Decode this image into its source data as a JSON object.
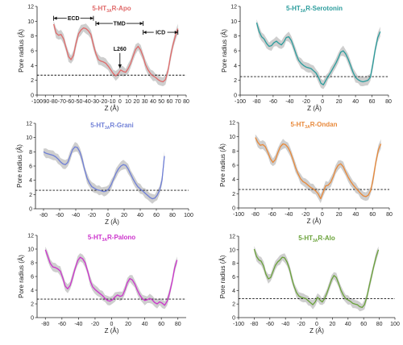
{
  "chart_data": [
    {
      "type": "line",
      "title": "5-HT3AR-Apo",
      "title_main": "5-HT",
      "title_sub": "3A",
      "title_rest": "R-Apo",
      "color": "#e06a6a",
      "xlabel": "Z (Å)",
      "ylabel": "Pore radius (Å)",
      "xlim": [
        -100,
        80
      ],
      "ylim": [
        0,
        12
      ],
      "x_ticks": [
        -100,
        -90,
        -80,
        -70,
        -60,
        -50,
        -40,
        -30,
        -20,
        -10,
        0,
        10,
        20,
        30,
        40,
        50,
        60,
        70,
        80
      ],
      "y_ticks": [
        0,
        2,
        4,
        6,
        8,
        10,
        12
      ],
      "threshold": 2.7,
      "x": [
        -80,
        -77,
        -74,
        -71,
        -68,
        -65,
        -62,
        -59,
        -56,
        -53,
        -50,
        -47,
        -44,
        -41,
        -38,
        -35,
        -32,
        -29,
        -26,
        -23,
        -20,
        -17,
        -14,
        -11,
        -8,
        -5,
        -2,
        1,
        4,
        7,
        10,
        13,
        16,
        19,
        22,
        25,
        28,
        31,
        34,
        37,
        40,
        43,
        46,
        49,
        52,
        55,
        58,
        61,
        64,
        67,
        70
      ],
      "y": [
        9.6,
        8.4,
        8.1,
        8.2,
        7.6,
        6.4,
        5.2,
        4.8,
        5.4,
        7.0,
        8.3,
        8.8,
        9.1,
        9.0,
        8.7,
        8.2,
        6.8,
        5.6,
        4.8,
        4.6,
        4.5,
        4.3,
        3.9,
        3.4,
        2.9,
        2.6,
        2.9,
        3.4,
        3.2,
        3.1,
        3.6,
        4.3,
        5.3,
        6.2,
        6.6,
        6.1,
        5.2,
        4.1,
        3.4,
        2.9,
        2.6,
        2.4,
        2.1,
        1.9,
        1.8,
        2.1,
        3.3,
        5.2,
        6.8,
        8.0,
        9.0
      ],
      "annotations": [
        {
          "text": "ECD",
          "x1": -80,
          "x2": -32,
          "y": 10.4
        },
        {
          "text": "TMD",
          "x1": -29,
          "x2": 28,
          "y": 9.7
        },
        {
          "text": "ICD",
          "x1": 28,
          "x2": 70,
          "y": 8.5
        }
      ],
      "arrow_label": {
        "text": "L260",
        "x": 0,
        "y": 3.4
      }
    },
    {
      "type": "line",
      "title": "5-HT3AR-Serotonin",
      "title_main": "5-HT",
      "title_sub": "3A",
      "title_rest": "R-Serotonin",
      "color": "#2a9c9c",
      "xlabel": "Z (Å)",
      "ylabel": "Pore radius (Å)",
      "xlim": [
        -100,
        80
      ],
      "ylim": [
        0,
        12
      ],
      "x_ticks": [
        -100,
        -80,
        -60,
        -40,
        -20,
        0,
        20,
        40,
        60,
        80
      ],
      "y_ticks": [
        0,
        2,
        4,
        6,
        8,
        10,
        12
      ],
      "threshold": 2.5,
      "x": [
        -80,
        -77,
        -74,
        -71,
        -68,
        -65,
        -62,
        -59,
        -56,
        -53,
        -50,
        -47,
        -44,
        -41,
        -38,
        -35,
        -32,
        -29,
        -26,
        -23,
        -20,
        -17,
        -14,
        -11,
        -8,
        -5,
        -2,
        1,
        4,
        7,
        10,
        13,
        16,
        19,
        22,
        25,
        28,
        31,
        34,
        37,
        40,
        43,
        46,
        49,
        52,
        55,
        58,
        61,
        64,
        67,
        70
      ],
      "y": [
        9.8,
        8.6,
        7.9,
        7.6,
        7.0,
        6.6,
        6.7,
        7.1,
        7.3,
        7.0,
        6.8,
        7.2,
        7.8,
        7.9,
        7.4,
        6.5,
        5.5,
        4.7,
        4.3,
        4.0,
        3.8,
        3.7,
        3.6,
        3.3,
        3.0,
        2.4,
        1.6,
        1.4,
        2.0,
        2.6,
        3.1,
        3.7,
        4.3,
        5.0,
        5.8,
        6.0,
        5.6,
        4.9,
        4.0,
        3.1,
        2.4,
        2.1,
        1.9,
        1.8,
        1.9,
        2.0,
        2.4,
        4.2,
        6.2,
        7.8,
        8.6
      ]
    },
    {
      "type": "line",
      "title": "5-HT3AR-Grani",
      "title_main": "5-HT",
      "title_sub": "3A",
      "title_rest": "R-Grani",
      "color": "#6f7fd6",
      "xlabel": "Z (Å)",
      "ylabel": "Pore radius (Å)",
      "xlim": [
        -90,
        100
      ],
      "ylim": [
        0,
        12
      ],
      "x_ticks": [
        -80,
        -60,
        -40,
        -20,
        0,
        20,
        40,
        60,
        80,
        100
      ],
      "y_ticks": [
        0,
        2,
        4,
        6,
        8,
        10,
        12
      ],
      "threshold": 2.6,
      "x": [
        -80,
        -77,
        -74,
        -71,
        -68,
        -65,
        -62,
        -59,
        -56,
        -53,
        -50,
        -47,
        -44,
        -41,
        -38,
        -35,
        -32,
        -29,
        -26,
        -23,
        -20,
        -17,
        -14,
        -11,
        -8,
        -5,
        -2,
        1,
        4,
        7,
        10,
        13,
        16,
        19,
        22,
        25,
        28,
        31,
        34,
        37,
        40,
        43,
        46,
        49,
        52,
        55,
        58,
        61,
        64,
        67,
        70
      ],
      "y": [
        8.0,
        7.8,
        7.7,
        7.6,
        7.5,
        7.3,
        7.0,
        6.6,
        6.3,
        6.2,
        6.5,
        7.4,
        8.3,
        8.7,
        8.6,
        8.0,
        6.9,
        5.5,
        4.3,
        3.6,
        3.1,
        2.9,
        2.7,
        2.6,
        2.5,
        2.4,
        2.5,
        2.8,
        3.4,
        4.2,
        5.0,
        5.6,
        6.0,
        6.2,
        6.1,
        5.6,
        4.9,
        4.2,
        3.6,
        3.1,
        2.8,
        2.5,
        2.2,
        1.9,
        1.6,
        1.4,
        1.5,
        1.9,
        2.6,
        4.0,
        7.4
      ]
    },
    {
      "type": "line",
      "title": "5-HT3AR-Ondan",
      "title_main": "5-HT",
      "title_sub": "3A",
      "title_rest": "R-Ondan",
      "color": "#e8893a",
      "xlabel": "Z (Å)",
      "ylabel": "Pore radius (Å)",
      "xlim": [
        -100,
        80
      ],
      "ylim": [
        0,
        12
      ],
      "x_ticks": [
        -100,
        -80,
        -60,
        -40,
        -20,
        0,
        20,
        40,
        60,
        80
      ],
      "y_ticks": [
        0,
        2,
        4,
        6,
        8,
        10,
        12
      ],
      "threshold": 2.6,
      "x": [
        -80,
        -77,
        -74,
        -71,
        -68,
        -65,
        -62,
        -59,
        -56,
        -53,
        -50,
        -47,
        -44,
        -41,
        -38,
        -35,
        -32,
        -29,
        -26,
        -23,
        -20,
        -17,
        -14,
        -11,
        -8,
        -5,
        -2,
        1,
        4,
        7,
        10,
        13,
        16,
        19,
        22,
        25,
        28,
        31,
        34,
        37,
        40,
        43,
        46,
        49,
        52,
        55,
        58,
        61,
        64,
        67,
        70
      ],
      "y": [
        9.9,
        9.2,
        8.8,
        8.9,
        8.6,
        7.8,
        6.9,
        6.4,
        6.8,
        7.8,
        8.6,
        9.0,
        8.9,
        8.5,
        7.8,
        6.8,
        5.7,
        4.8,
        4.1,
        3.7,
        3.5,
        3.2,
        2.9,
        2.7,
        2.4,
        2.0,
        1.3,
        2.2,
        3.1,
        3.2,
        3.6,
        4.4,
        5.4,
        6.0,
        6.2,
        5.8,
        5.0,
        4.3,
        3.7,
        3.2,
        2.8,
        2.4,
        2.0,
        1.7,
        1.6,
        1.8,
        2.5,
        4.3,
        6.5,
        8.2,
        9.0
      ]
    },
    {
      "type": "line",
      "title": "5-HT3AR-Palono",
      "title_main": "5-HT",
      "title_sub": "3A",
      "title_rest": "R-Palono",
      "color": "#cc33cc",
      "xlabel": "Z (Å)",
      "ylabel": "Pore radius (Å)",
      "xlim": [
        -90,
        90
      ],
      "ylim": [
        0,
        12
      ],
      "x_ticks": [
        -80,
        -60,
        -40,
        -20,
        0,
        20,
        40,
        60,
        80
      ],
      "y_ticks": [
        0,
        2,
        4,
        6,
        8,
        10,
        12
      ],
      "threshold": 2.7,
      "x": [
        -80,
        -77,
        -74,
        -71,
        -68,
        -65,
        -62,
        -59,
        -56,
        -53,
        -50,
        -47,
        -44,
        -41,
        -38,
        -35,
        -32,
        -29,
        -26,
        -23,
        -20,
        -17,
        -14,
        -11,
        -8,
        -5,
        -2,
        1,
        4,
        7,
        10,
        13,
        16,
        19,
        22,
        25,
        28,
        31,
        34,
        37,
        40,
        43,
        46,
        49,
        52,
        55,
        58,
        61,
        64,
        67,
        70,
        73,
        76,
        79
      ],
      "y": [
        9.9,
        8.9,
        7.9,
        7.4,
        7.3,
        7.1,
        6.8,
        5.8,
        4.6,
        4.2,
        4.7,
        5.9,
        7.2,
        8.3,
        8.8,
        8.6,
        8.0,
        6.8,
        5.4,
        4.5,
        4.1,
        3.8,
        3.5,
        3.2,
        2.8,
        2.5,
        2.4,
        2.6,
        3.0,
        3.3,
        3.1,
        3.2,
        4.0,
        5.1,
        5.7,
        5.5,
        4.9,
        4.0,
        3.3,
        2.8,
        2.5,
        2.6,
        2.8,
        2.6,
        2.2,
        2.0,
        2.3,
        2.1,
        1.8,
        2.4,
        3.6,
        5.2,
        7.2,
        8.4
      ]
    },
    {
      "type": "line",
      "title": "5-HT3AR-Alo",
      "title_main": "5-HT",
      "title_sub": "3A",
      "title_rest": "R-Alo",
      "color": "#6aa23a",
      "xlabel": "Z (Å)",
      "ylabel": "Pore radius (Å)",
      "xlim": [
        -100,
        100
      ],
      "ylim": [
        0,
        12
      ],
      "x_ticks": [
        -100,
        -80,
        -60,
        -40,
        -20,
        0,
        20,
        40,
        60,
        80,
        100
      ],
      "y_ticks": [
        0,
        2,
        4,
        6,
        8,
        10,
        12
      ],
      "threshold": 2.8,
      "x": [
        -80,
        -77,
        -74,
        -71,
        -68,
        -65,
        -62,
        -59,
        -56,
        -53,
        -50,
        -47,
        -44,
        -41,
        -38,
        -35,
        -32,
        -29,
        -26,
        -23,
        -20,
        -17,
        -14,
        -11,
        -8,
        -5,
        -2,
        1,
        4,
        7,
        10,
        13,
        16,
        19,
        22,
        25,
        28,
        31,
        34,
        37,
        40,
        43,
        46,
        49,
        52,
        55,
        58,
        61,
        64,
        67,
        70,
        73,
        76,
        79
      ],
      "y": [
        10.1,
        9.0,
        8.5,
        8.3,
        7.6,
        6.4,
        5.7,
        5.9,
        6.8,
        7.7,
        8.2,
        8.5,
        8.9,
        8.8,
        8.2,
        7.2,
        5.8,
        4.6,
        3.7,
        3.2,
        3.0,
        2.9,
        2.8,
        2.5,
        2.2,
        1.9,
        2.3,
        3.0,
        2.6,
        2.3,
        2.8,
        3.6,
        4.6,
        5.6,
        6.2,
        5.9,
        5.0,
        4.0,
        3.3,
        2.8,
        2.6,
        2.4,
        2.1,
        2.0,
        1.9,
        1.6,
        1.5,
        1.9,
        3.0,
        4.6,
        6.1,
        7.6,
        9.0,
        10.0
      ]
    }
  ]
}
